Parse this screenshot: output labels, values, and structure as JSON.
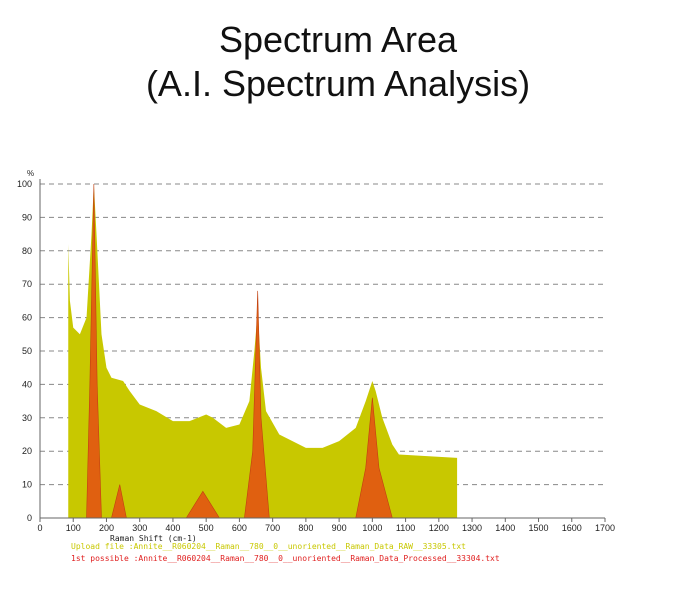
{
  "slide": {
    "title_line1": "Spectrum Area",
    "title_line2": "(A.I. Spectrum Analysis)"
  },
  "chart_data": {
    "type": "area",
    "xlabel": "Raman Shift (cm-1)",
    "ylabel": "%",
    "xlim": [
      0,
      1700
    ],
    "ylim": [
      0,
      100
    ],
    "xticks": [
      0,
      100,
      200,
      300,
      400,
      500,
      600,
      700,
      800,
      900,
      1000,
      1100,
      1200,
      1300,
      1400,
      1500,
      1600,
      1700
    ],
    "yticks": [
      0,
      10,
      20,
      30,
      40,
      50,
      60,
      70,
      80,
      90,
      100
    ],
    "grid": "horizontal dashed",
    "legend_placement": "bottom",
    "series": [
      {
        "name": "Upload file  :Annite__R060204__Raman__780__0__unoriented__Raman_Data_RAW__33305.txt",
        "color": "#c8c800",
        "x": [
          85,
          90,
          100,
          120,
          140,
          155,
          162,
          170,
          185,
          200,
          215,
          250,
          270,
          300,
          350,
          400,
          450,
          500,
          520,
          560,
          600,
          630,
          645,
          655,
          665,
          680,
          720,
          800,
          850,
          900,
          950,
          980,
          1000,
          1010,
          1030,
          1060,
          1080,
          1255
        ],
        "y": [
          82,
          65,
          57,
          55,
          60,
          85,
          100,
          85,
          55,
          45,
          42,
          41,
          38,
          34,
          32,
          29,
          29,
          31,
          30,
          27,
          28,
          35,
          50,
          62,
          45,
          32,
          25,
          21,
          21,
          23,
          27,
          35,
          41,
          38,
          30,
          22,
          19,
          18
        ]
      },
      {
        "name": "1st possible :Annite__R060204__Raman__780__0__unoriented__Raman_Data_Processed__33304.txt",
        "color": "#e06010",
        "x": [
          140,
          150,
          162,
          172,
          185,
          215,
          240,
          260,
          440,
          490,
          540,
          615,
          640,
          655,
          665,
          690,
          950,
          980,
          1000,
          1020,
          1060
        ],
        "y": [
          0,
          40,
          100,
          40,
          0,
          0,
          10,
          0,
          0,
          8,
          0,
          0,
          20,
          68,
          30,
          0,
          0,
          15,
          36,
          15,
          0
        ]
      }
    ]
  }
}
